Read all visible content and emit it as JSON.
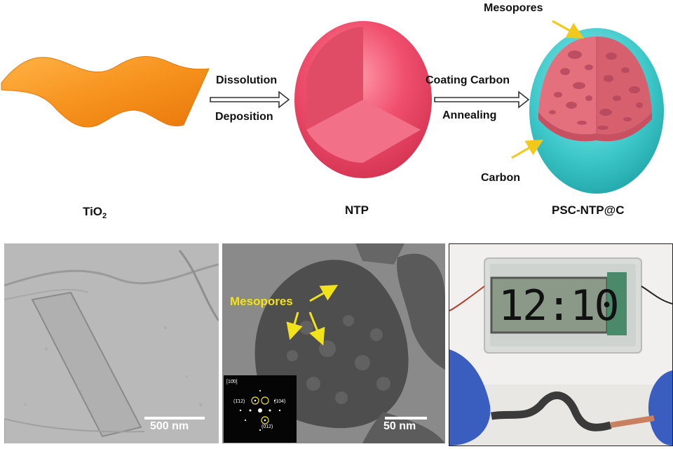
{
  "schematic": {
    "tio2_label": "TiO",
    "tio2_subscript": "2",
    "ntp_label": "NTP",
    "psc_label": "PSC-NTP@C",
    "step1_top": "Dissolution",
    "step1_bottom": "Deposition",
    "step2_top": "Coating Carbon",
    "step2_bottom": "Annealing",
    "mesopores_label": "Mesopores",
    "carbon_label": "Carbon"
  },
  "micrographs": {
    "left_scale": "500 nm",
    "middle_label": "Mesopores",
    "middle_scale": "50 nm",
    "saed_top": "[10̄0]",
    "saed_112": "(1̄12)",
    "saed_104": "(104)",
    "saed_012": "(012)"
  },
  "device": {
    "clock_text": "12:10"
  },
  "colors": {
    "tio2_sheet": "#f7931e",
    "ntp_sphere": "#f0506e",
    "carbon_shell": "#3cc6c8",
    "annotation_yellow": "#f2e21a"
  }
}
